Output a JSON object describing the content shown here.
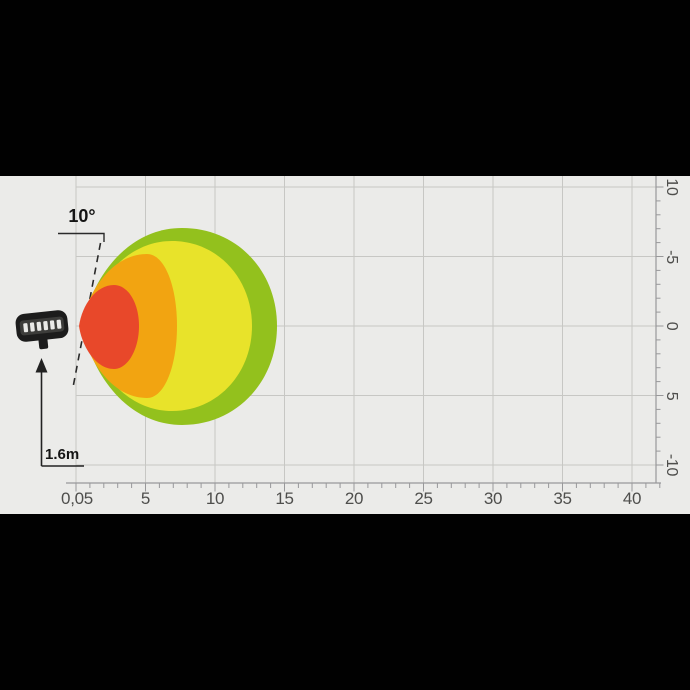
{
  "axes": {
    "x": {
      "labels": [
        "0,05",
        "5",
        "10",
        "15",
        "20",
        "25",
        "30",
        "35",
        "40"
      ]
    },
    "y": {
      "labels": [
        "10",
        "-5",
        "0",
        "5",
        "-10"
      ]
    }
  },
  "annotations": {
    "beam_angle": "10°",
    "mount_height": "1.6m"
  },
  "colors": {
    "background": "#ebebe9",
    "gridline": "#c7c7c4",
    "axis": "#98989a",
    "annotation": "#2a2a2a"
  },
  "chart_data": {
    "type": "area",
    "title": "",
    "xlabel": "",
    "ylabel": "",
    "x_tick_labels": [
      "0,05",
      "5",
      "10",
      "15",
      "20",
      "25",
      "30",
      "35",
      "40"
    ],
    "y_tick_labels_top_to_bottom": [
      "10",
      "-5",
      "0",
      "5",
      "-10"
    ],
    "x_range_m": [
      0,
      42
    ],
    "y_range_m": [
      -10,
      10
    ],
    "grid": "on",
    "beam_tilt_deg": "10°",
    "mount_height_m": "1.6m",
    "zones": [
      {
        "name": "outer-green-zone",
        "color": "#93c11d",
        "reach_m": 14.5,
        "spread_m": [
          -7.1,
          7.1
        ]
      },
      {
        "name": "yellow-zone",
        "color": "#e8e32a",
        "reach_m": 12.7,
        "spread_m": [
          -6.1,
          6.1
        ]
      },
      {
        "name": "orange-zone",
        "color": "#f2a411",
        "reach_m": 7.3,
        "spread_m": [
          -5.2,
          5.2
        ]
      },
      {
        "name": "inner-red-zone",
        "color": "#e8482a",
        "reach_m": 4.5,
        "spread_m": [
          -3.0,
          3.1
        ]
      }
    ]
  }
}
